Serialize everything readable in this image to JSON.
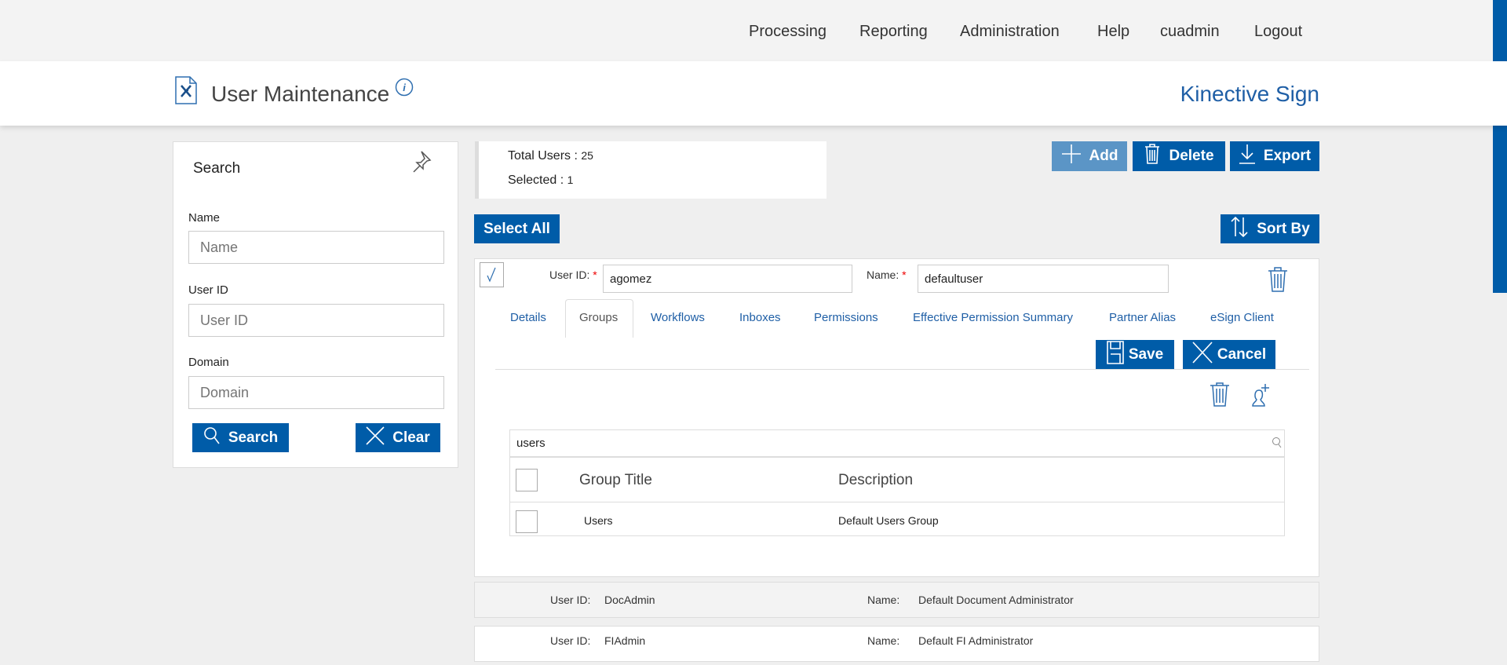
{
  "nav": {
    "items": [
      "Processing",
      "Reporting",
      "Administration",
      "Help",
      "cuadmin",
      "Logout"
    ]
  },
  "header": {
    "title": "User Maintenance",
    "brand": "Kinective Sign"
  },
  "search": {
    "title": "Search",
    "name_label": "Name",
    "name_placeholder": "Name",
    "userid_label": "User ID",
    "userid_placeholder": "User ID",
    "domain_label": "Domain",
    "domain_placeholder": "Domain",
    "search_button": "Search",
    "clear_button": "Clear"
  },
  "stats": {
    "total_label": "Total Users :",
    "total_value": "25",
    "selected_label": "Selected :",
    "selected_value": "1"
  },
  "toolbar": {
    "add": "Add",
    "delete": "Delete",
    "export": "Export",
    "select_all": "Select All",
    "sort_by": "Sort By"
  },
  "colors": {
    "primary": "#005ca8",
    "disabled": "#5b95c6"
  },
  "expanded": {
    "userid_label": "User ID:",
    "userid_value": "agomez",
    "name_label": "Name:",
    "name_value": "defaultuser",
    "selected": true,
    "tabs": [
      "Details",
      "Groups",
      "Workflows",
      "Inboxes",
      "Permissions",
      "Effective Permission Summary",
      "Partner Alias",
      "eSign Client"
    ],
    "active_tab": "Groups",
    "save": "Save",
    "cancel": "Cancel",
    "groups": {
      "filter": "users",
      "columns": [
        "Group Title",
        "Description"
      ],
      "rows": [
        {
          "title": "Users",
          "description": "Default Users Group"
        }
      ]
    }
  },
  "users": [
    {
      "userid_label": "User ID:",
      "userid": "DocAdmin",
      "name_label": "Name:",
      "name": "Default Document Administrator"
    },
    {
      "userid_label": "User ID:",
      "userid": "FIAdmin",
      "name_label": "Name:",
      "name": "Default FI Administrator"
    }
  ]
}
